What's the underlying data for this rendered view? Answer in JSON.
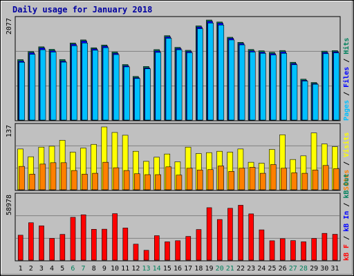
{
  "chart_data": [
    {
      "type": "bar",
      "title": "Daily usage for January 2018",
      "categories": [
        "1",
        "2",
        "3",
        "4",
        "5",
        "6",
        "7",
        "8",
        "9",
        "10",
        "11",
        "12",
        "13",
        "14",
        "15",
        "16",
        "17",
        "18",
        "19",
        "20",
        "21",
        "22",
        "23",
        "24",
        "25",
        "26",
        "27",
        "28",
        "29",
        "30",
        "31"
      ],
      "weekend_days": [
        "6",
        "7",
        "13",
        "14",
        "20",
        "21",
        "27",
        "28"
      ],
      "ymax_label": "2077",
      "ylim": [
        0,
        2077
      ],
      "legend": [
        "Pages",
        "Files",
        "Hits"
      ],
      "series": [
        {
          "name": "Hits",
          "values": [
            1255,
            1422,
            1521,
            1469,
            1257,
            1600,
            1664,
            1501,
            1558,
            1414,
            1153,
            906,
            1113,
            1463,
            1752,
            1510,
            1448,
            1955,
            2077,
            2036,
            1719,
            1614,
            1466,
            1439,
            1407,
            1444,
            1200,
            849,
            780,
            1431,
            1442
          ]
        },
        {
          "name": "Files",
          "values": [
            1224,
            1398,
            1497,
            1439,
            1223,
            1575,
            1640,
            1478,
            1534,
            1386,
            1127,
            880,
            1082,
            1434,
            1727,
            1487,
            1423,
            1931,
            2050,
            2011,
            1697,
            1589,
            1437,
            1409,
            1379,
            1416,
            1174,
            827,
            758,
            1404,
            1418
          ]
        },
        {
          "name": "Pages",
          "values": [
            1199,
            1365,
            1460,
            1412,
            1202,
            1543,
            1600,
            1450,
            1503,
            1360,
            1104,
            862,
            1064,
            1405,
            1698,
            1460,
            1399,
            1897,
            2014,
            1973,
            1663,
            1561,
            1413,
            1384,
            1351,
            1385,
            1149,
            810,
            744,
            1378,
            1395
          ]
        }
      ],
      "colors": {
        "Hits": "#00805c",
        "Files": "#0000ff",
        "Pages": "#00c0ff"
      }
    },
    {
      "type": "bar",
      "ymax_label": "137",
      "ylim": [
        0,
        137
      ],
      "legend": [
        "Sites",
        "Visits"
      ],
      "series": [
        {
          "name": "Visits",
          "values": [
            89,
            72,
            93,
            95,
            108,
            82,
            91,
            99,
            137,
            125,
            119,
            84,
            62,
            71,
            78,
            61,
            93,
            79,
            81,
            84,
            82,
            89,
            60,
            58,
            88,
            120,
            66,
            74,
            124,
            100,
            94
          ]
        },
        {
          "name": "Sites",
          "values": [
            51,
            34,
            56,
            59,
            59,
            42,
            34,
            36,
            60,
            48,
            42,
            35,
            33,
            33,
            50,
            32,
            47,
            43,
            44,
            52,
            40,
            47,
            49,
            36,
            55,
            47,
            37,
            36,
            43,
            53,
            46
          ]
        }
      ],
      "colors": {
        "Visits": "#ffff00",
        "Sites": "#ff8000"
      }
    },
    {
      "type": "bar",
      "ymax_label": "58978",
      "ylim": [
        0,
        58978
      ],
      "legend": [
        "kB F",
        "kB In",
        "kB Out"
      ],
      "series": [
        {
          "name": "kB F",
          "values": [
            23186,
            34762,
            31893,
            20217,
            23926,
            39785,
            42148,
            28659,
            28768,
            43197,
            29851,
            14856,
            9138,
            22731,
            17015,
            18057,
            22048,
            28465,
            48745,
            37769,
            48186,
            50995,
            43007,
            28151,
            18008,
            19939,
            18172,
            17043,
            20155,
            24898,
            24019
          ]
        }
      ],
      "colors": {
        "kB F": "#ff0000",
        "kB In": "#0000ff",
        "kB Out": "#00805c"
      }
    }
  ]
}
